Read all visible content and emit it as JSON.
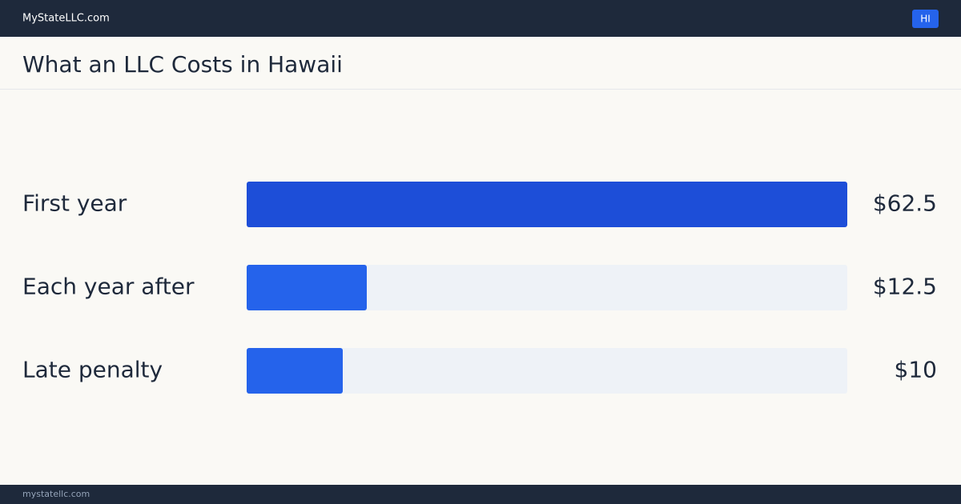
{
  "header": {
    "site": "MyStateLLC.com",
    "badge": "HI"
  },
  "footer": {
    "site": "mystatellc.com"
  },
  "chart_data": {
    "type": "bar",
    "orientation": "horizontal",
    "title": "What an LLC Costs in Hawaii",
    "categories": [
      "First year",
      "Each year after",
      "Late penalty"
    ],
    "values": [
      62.5,
      12.5,
      10
    ],
    "value_labels": [
      "$62.5",
      "$12.5",
      "$10"
    ],
    "colors": [
      "#1d4ed8",
      "#2563eb",
      "#2563eb"
    ],
    "track_color": "#eef2f7"
  }
}
